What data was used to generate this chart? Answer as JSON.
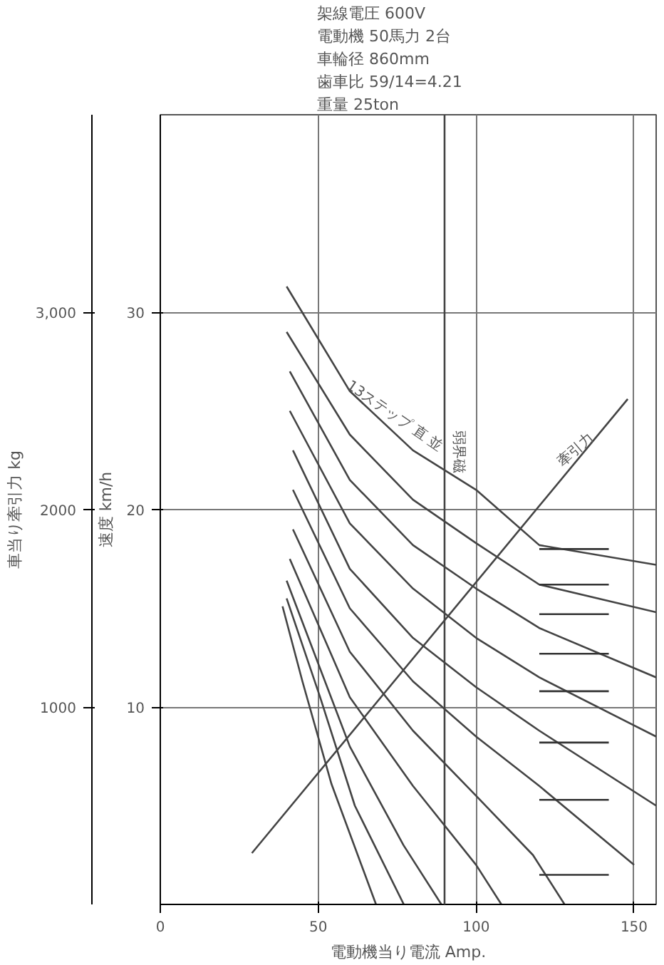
{
  "chart_data": {
    "type": "line",
    "xlabel": "電動機当り電流 Amp.",
    "ylabel": "速度 km/h",
    "y2label": "車当り牽引力 kg",
    "annotations": [
      "架線電圧 600V",
      "電動機 50馬力 2台",
      "車輪径 860mm",
      "歯車比 59/14=4.21",
      "重量 25ton",
      {
        "text": "13ステップ 直 並",
        "x": 58,
        "y": 26
      },
      {
        "text": "牽引力",
        "x": 128,
        "y": 22
      }
    ],
    "xlim": [
      0,
      157
    ],
    "xticks": [
      0,
      50,
      100,
      150
    ],
    "ylim": [
      0,
      40
    ],
    "yticks": [
      10,
      20,
      30
    ],
    "y2lim": [
      0,
      4000
    ],
    "y2ticks": [
      {
        "value": 1000,
        "label": "1000"
      },
      {
        "value": 2000,
        "label": "2000"
      },
      {
        "value": 3000,
        "label": "3,000"
      }
    ],
    "grid": true,
    "ref_lines": [
      {
        "axis": "x",
        "value": 90,
        "label": "弱界磁",
        "color": "#444444"
      }
    ],
    "series": [
      {
        "color": "#444444",
        "x": [
          40,
          60,
          80,
          100,
          120,
          157
        ],
        "values": [
          31.3,
          26,
          23,
          21,
          18.2,
          17.2
        ]
      },
      {
        "color": "#444444",
        "x": [
          40,
          60,
          80,
          100,
          120,
          157
        ],
        "values": [
          29,
          23.8,
          20.5,
          18.3,
          16.2,
          14.8
        ]
      },
      {
        "color": "#444444",
        "x": [
          41,
          60,
          80,
          100,
          120,
          157
        ],
        "values": [
          27,
          21.5,
          18.2,
          16,
          14,
          11.5
        ]
      },
      {
        "color": "#444444",
        "x": [
          41,
          60,
          80,
          100,
          120,
          157
        ],
        "values": [
          25,
          19.3,
          16,
          13.5,
          11.5,
          8.5
        ]
      },
      {
        "color": "#444444",
        "x": [
          42,
          60,
          80,
          100,
          120,
          157
        ],
        "values": [
          23,
          17,
          13.5,
          11,
          8.8,
          5
        ]
      },
      {
        "color": "#444444",
        "x": [
          42,
          60,
          80,
          100,
          120,
          150
        ],
        "values": [
          21,
          15,
          11.3,
          8.5,
          6,
          2
        ]
      },
      {
        "color": "#444444",
        "x": [
          42,
          60,
          80,
          100,
          118,
          128
        ],
        "values": [
          19,
          12.8,
          8.8,
          5.5,
          2.5,
          0
        ]
      },
      {
        "color": "#444444",
        "x": [
          41,
          60,
          80,
          100,
          108
        ],
        "values": [
          17.5,
          10.5,
          6,
          2,
          0
        ]
      },
      {
        "color": "#444444",
        "x": [
          40,
          60,
          77,
          89
        ],
        "values": [
          16.4,
          8,
          3,
          0
        ]
      },
      {
        "color": "#444444",
        "x": [
          40,
          50.6,
          61.6,
          77.1
        ],
        "values": [
          15.5,
          10.5,
          5,
          0
        ]
      },
      {
        "color": "#444444",
        "x": [
          38.7,
          45,
          54.2,
          68.3
        ],
        "values": [
          15.1,
          11.3,
          6.1,
          0
        ]
      },
      {
        "color": "#333333",
        "x": [
          120,
          142
        ],
        "values": [
          18,
          18
        ]
      },
      {
        "color": "#333333",
        "x": [
          120,
          142
        ],
        "values": [
          16.2,
          16.2
        ]
      },
      {
        "color": "#333333",
        "x": [
          120,
          142
        ],
        "values": [
          14.7,
          14.7
        ]
      },
      {
        "color": "#333333",
        "x": [
          120,
          142
        ],
        "values": [
          12.7,
          12.7
        ]
      },
      {
        "color": "#333333",
        "x": [
          120,
          142
        ],
        "values": [
          10.8,
          10.8
        ]
      },
      {
        "color": "#333333",
        "x": [
          120,
          142
        ],
        "values": [
          8.2,
          8.2
        ]
      },
      {
        "color": "#333333",
        "x": [
          120,
          142
        ],
        "values": [
          5.3,
          5.3
        ]
      },
      {
        "color": "#333333",
        "x": [
          120,
          142
        ],
        "values": [
          1.5,
          1.5
        ]
      },
      {
        "color": "#444444",
        "x": [
          29,
          148
        ],
        "values": [
          2.6,
          25.6
        ]
      }
    ]
  }
}
